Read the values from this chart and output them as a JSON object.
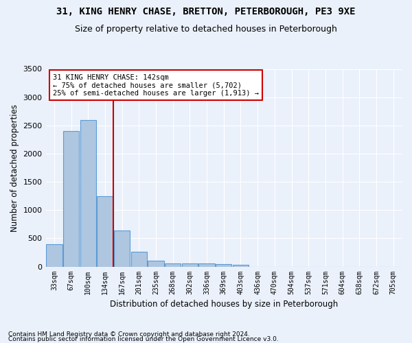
{
  "title1": "31, KING HENRY CHASE, BRETTON, PETERBOROUGH, PE3 9XE",
  "title2": "Size of property relative to detached houses in Peterborough",
  "xlabel": "Distribution of detached houses by size in Peterborough",
  "ylabel": "Number of detached properties",
  "bin_labels": [
    "33sqm",
    "67sqm",
    "100sqm",
    "134sqm",
    "167sqm",
    "201sqm",
    "235sqm",
    "268sqm",
    "302sqm",
    "336sqm",
    "369sqm",
    "403sqm",
    "436sqm",
    "470sqm",
    "504sqm",
    "537sqm",
    "571sqm",
    "604sqm",
    "638sqm",
    "672sqm",
    "705sqm"
  ],
  "bar_values": [
    390,
    2400,
    2600,
    1250,
    640,
    260,
    100,
    60,
    60,
    55,
    40,
    30,
    0,
    0,
    0,
    0,
    0,
    0,
    0,
    0,
    0
  ],
  "bar_color": "#aec6e0",
  "bar_edge_color": "#5b9bd5",
  "vline_color": "#cc0000",
  "annotation_text": "31 KING HENRY CHASE: 142sqm\n← 75% of detached houses are smaller (5,702)\n25% of semi-detached houses are larger (1,913) →",
  "annotation_box_color": "#ffffff",
  "annotation_box_edge": "#cc0000",
  "ylim": [
    0,
    3500
  ],
  "yticks": [
    0,
    500,
    1000,
    1500,
    2000,
    2500,
    3000,
    3500
  ],
  "footnote1": "Contains HM Land Registry data © Crown copyright and database right 2024.",
  "footnote2": "Contains public sector information licensed under the Open Government Licence v3.0.",
  "bg_color": "#eaf1fb",
  "plot_bg_color": "#eaf1fb",
  "grid_color": "#ffffff",
  "title1_fontsize": 10,
  "title2_fontsize": 9,
  "xlabel_fontsize": 8.5,
  "ylabel_fontsize": 8.5
}
